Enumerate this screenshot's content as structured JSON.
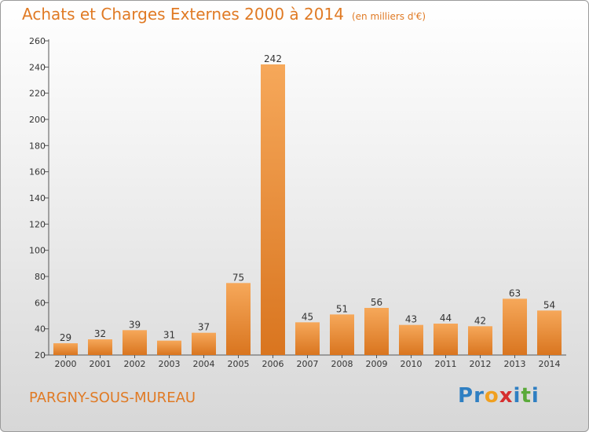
{
  "header": {
    "title": "Achats et Charges Externes 2000 à 2014",
    "unit": "(en milliers d'€)"
  },
  "commune": "PARGNY-SOUS-MUREAU",
  "logo": {
    "letters": [
      "P",
      "r",
      "o",
      "x",
      "i",
      "t",
      "i"
    ],
    "colors": [
      "#2f7fc2",
      "#2f7fc2",
      "#f0a020",
      "#d62f2f",
      "#2f7fc2",
      "#5aaa3a",
      "#2f7fc2"
    ]
  },
  "colors": {
    "accent": "#e07a24",
    "bar_top": "#f6a85a",
    "bar_bottom": "#d9751f"
  },
  "chart_data": {
    "type": "bar",
    "title": "Achats et Charges Externes 2000 à 2014",
    "subtitle": "(en milliers d'€)",
    "categories": [
      "2000",
      "2001",
      "2002",
      "2003",
      "2004",
      "2005",
      "2006",
      "2007",
      "2008",
      "2009",
      "2010",
      "2011",
      "2012",
      "2013",
      "2014"
    ],
    "values": [
      29,
      32,
      39,
      31,
      37,
      75,
      242,
      45,
      51,
      56,
      43,
      44,
      42,
      63,
      54
    ],
    "yticks": [
      20,
      40,
      60,
      80,
      100,
      120,
      140,
      160,
      180,
      200,
      220,
      240,
      260
    ],
    "ylim": [
      20,
      260
    ],
    "grid": false
  }
}
